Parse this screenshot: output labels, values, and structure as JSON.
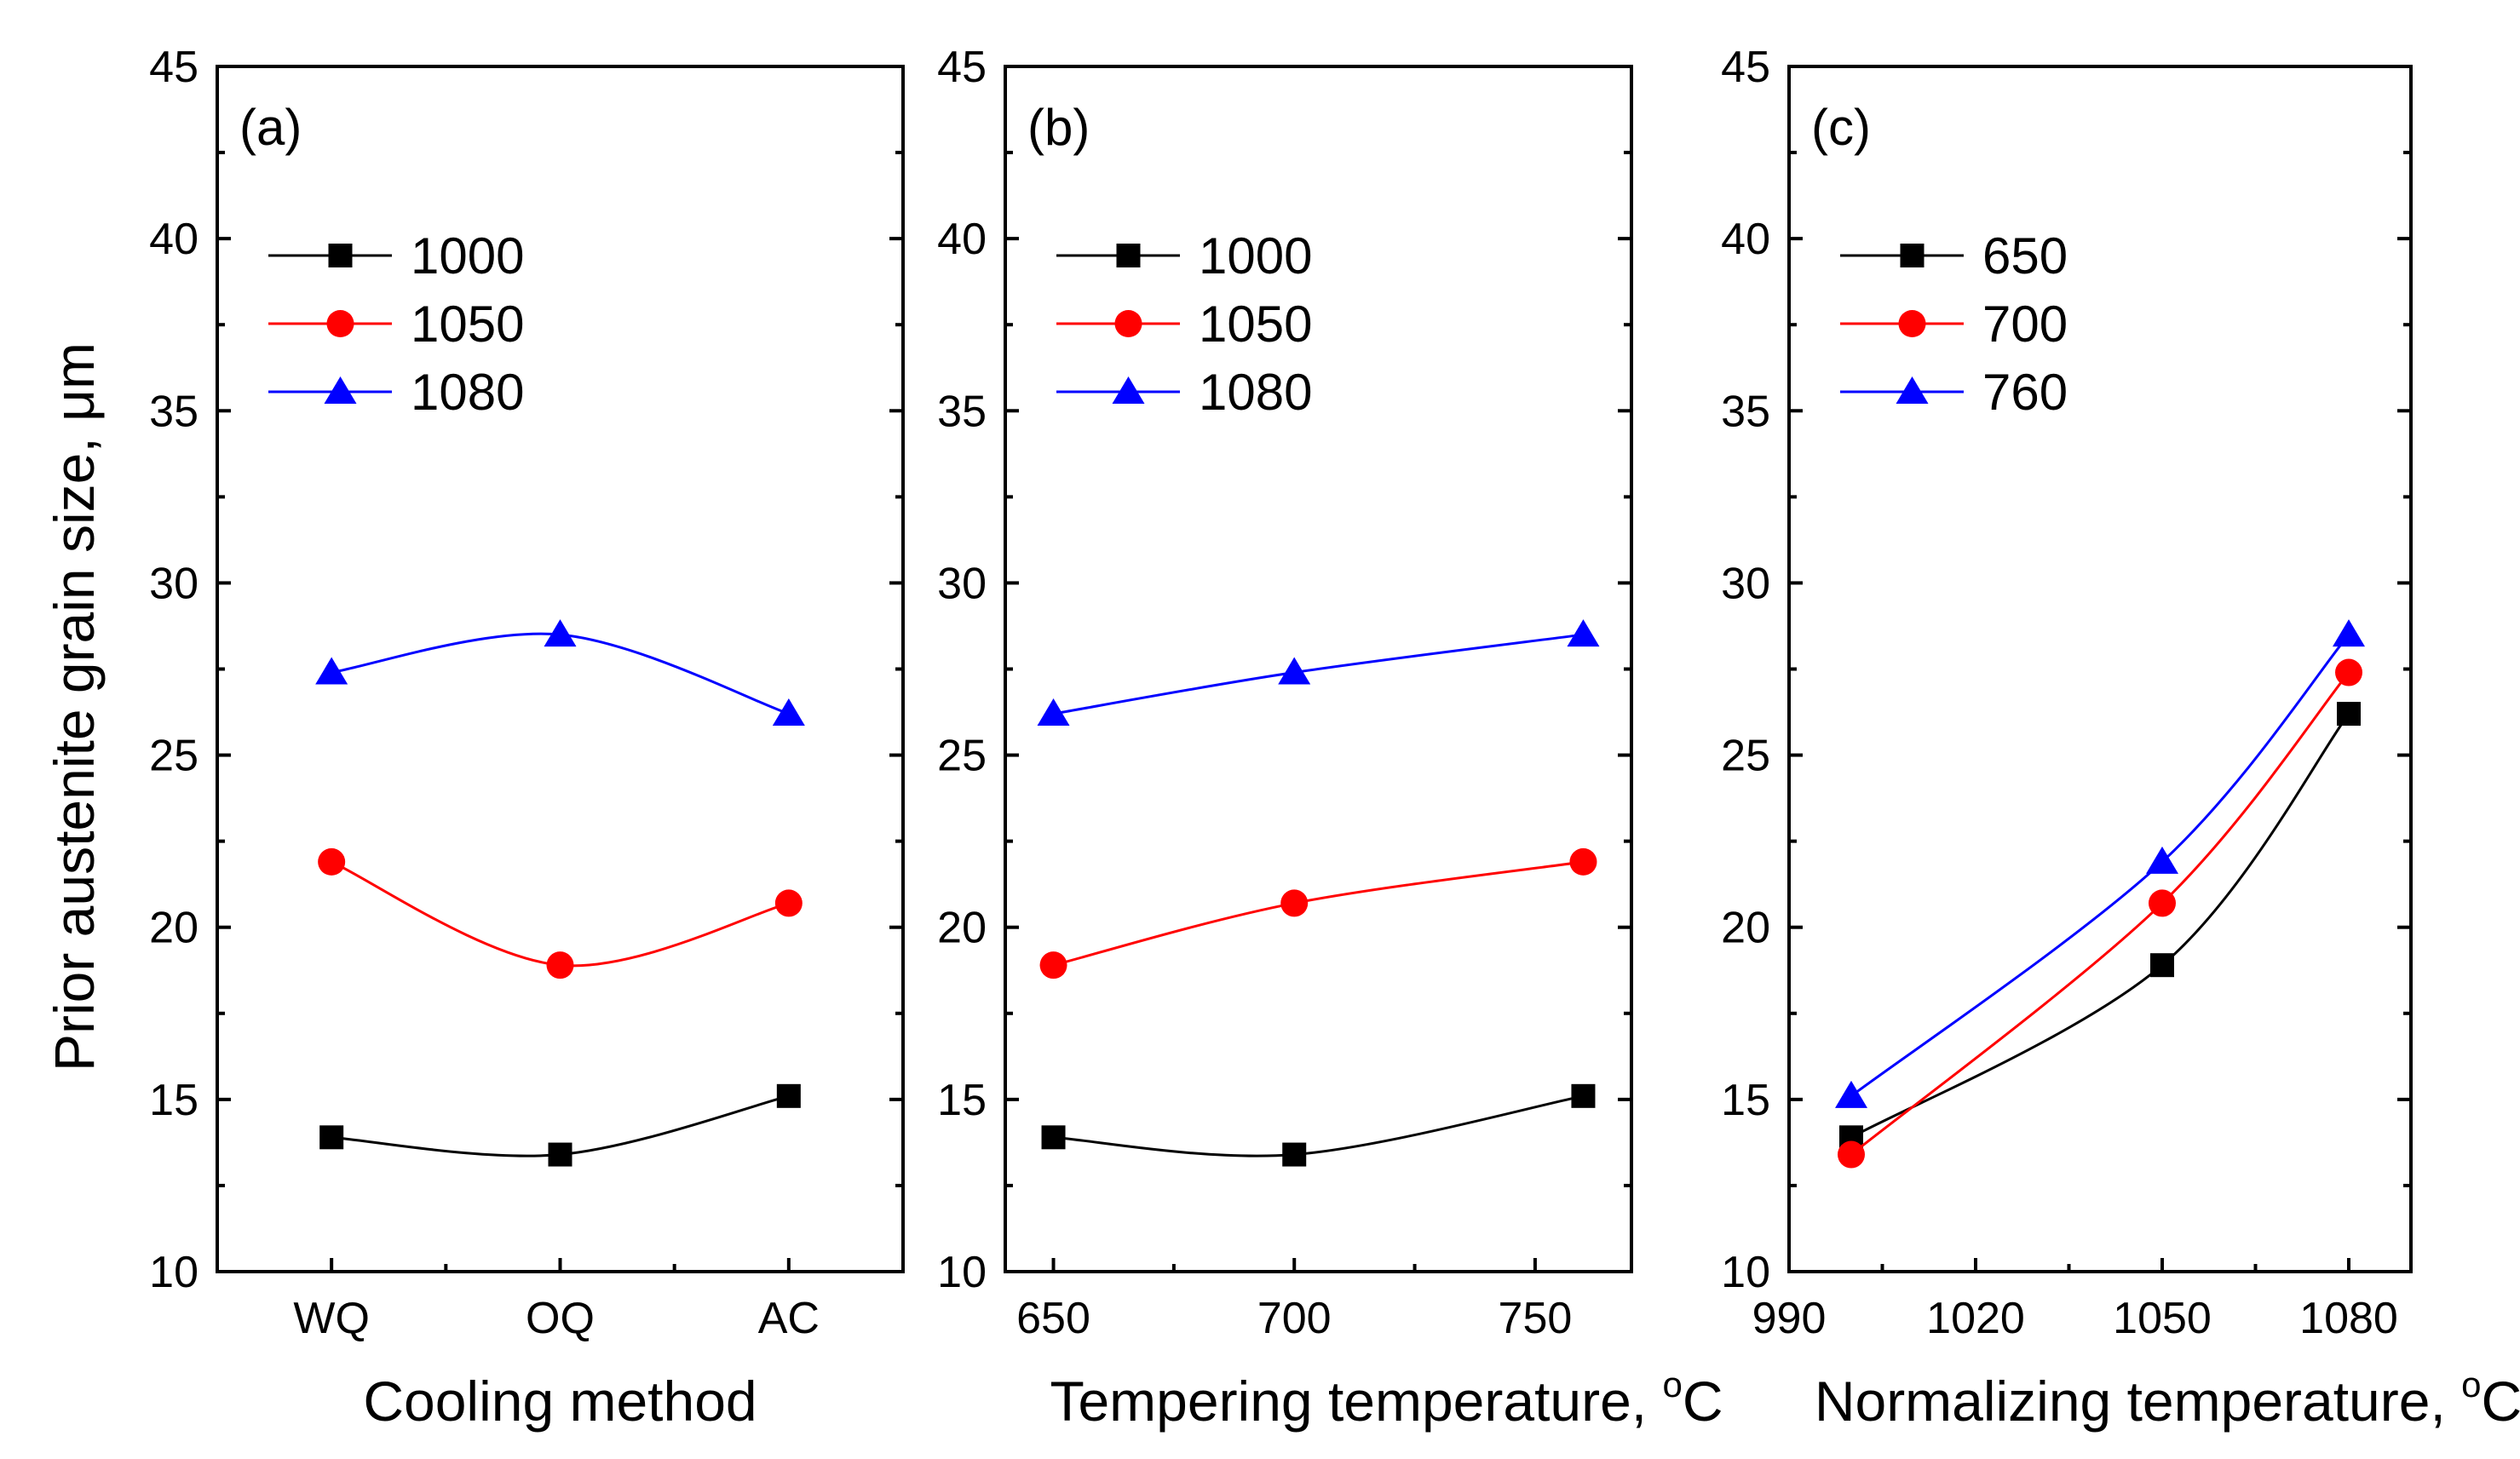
{
  "figure": {
    "y_axis_title": "Prior austenite grain size, μm"
  },
  "chart_data": [
    {
      "type": "line",
      "panel_label": "(a)",
      "xlabel": "Cooling method",
      "ylabel": "Prior austenite grain size, μm",
      "x_categorical": true,
      "categories": [
        "WQ",
        "OQ",
        "AC"
      ],
      "xlim": [
        -0.5,
        2.5
      ],
      "ylim": [
        10,
        45
      ],
      "yticks": [
        10,
        15,
        20,
        25,
        30,
        35,
        40,
        45
      ],
      "legend_position": "top-left",
      "series": [
        {
          "name": "1000",
          "marker": "square",
          "color": "#000000",
          "values": [
            13.9,
            13.4,
            15.1
          ]
        },
        {
          "name": "1050",
          "marker": "circle",
          "color": "#ff0000",
          "values": [
            21.9,
            18.9,
            20.7
          ]
        },
        {
          "name": "1080",
          "marker": "triangle",
          "color": "#0000ff",
          "values": [
            27.4,
            28.5,
            26.2
          ]
        }
      ]
    },
    {
      "type": "line",
      "panel_label": "(b)",
      "xlabel": "Tempering temperature, ",
      "xlabel_sup": "o",
      "xlabel_unit": "C",
      "x_categorical": false,
      "x": [
        650,
        700,
        760
      ],
      "xlim": [
        640,
        770
      ],
      "xticks": [
        650,
        700,
        750
      ],
      "ylim": [
        10,
        45
      ],
      "yticks": [
        10,
        15,
        20,
        25,
        30,
        35,
        40,
        45
      ],
      "legend_position": "top-left",
      "series": [
        {
          "name": "1000",
          "marker": "square",
          "color": "#000000",
          "values": [
            13.9,
            13.4,
            15.1
          ]
        },
        {
          "name": "1050",
          "marker": "circle",
          "color": "#ff0000",
          "values": [
            18.9,
            20.7,
            21.9
          ]
        },
        {
          "name": "1080",
          "marker": "triangle",
          "color": "#0000ff",
          "values": [
            26.2,
            27.4,
            28.5
          ]
        }
      ]
    },
    {
      "type": "line",
      "panel_label": "(c)",
      "xlabel": "Normalizing temperature, ",
      "xlabel_sup": "o",
      "xlabel_unit": "C",
      "x_categorical": false,
      "x": [
        1000,
        1050,
        1080
      ],
      "xlim": [
        990,
        1090
      ],
      "xticks": [
        990,
        1020,
        1050,
        1080
      ],
      "ylim": [
        10,
        45
      ],
      "yticks": [
        10,
        15,
        20,
        25,
        30,
        35,
        40,
        45
      ],
      "legend_position": "top-left",
      "series": [
        {
          "name": "650",
          "marker": "square",
          "color": "#000000",
          "values": [
            13.9,
            18.9,
            26.2
          ]
        },
        {
          "name": "700",
          "marker": "circle",
          "color": "#ff0000",
          "values": [
            13.4,
            20.7,
            27.4
          ]
        },
        {
          "name": "760",
          "marker": "triangle",
          "color": "#0000ff",
          "values": [
            15.1,
            21.9,
            28.5
          ]
        }
      ]
    }
  ]
}
